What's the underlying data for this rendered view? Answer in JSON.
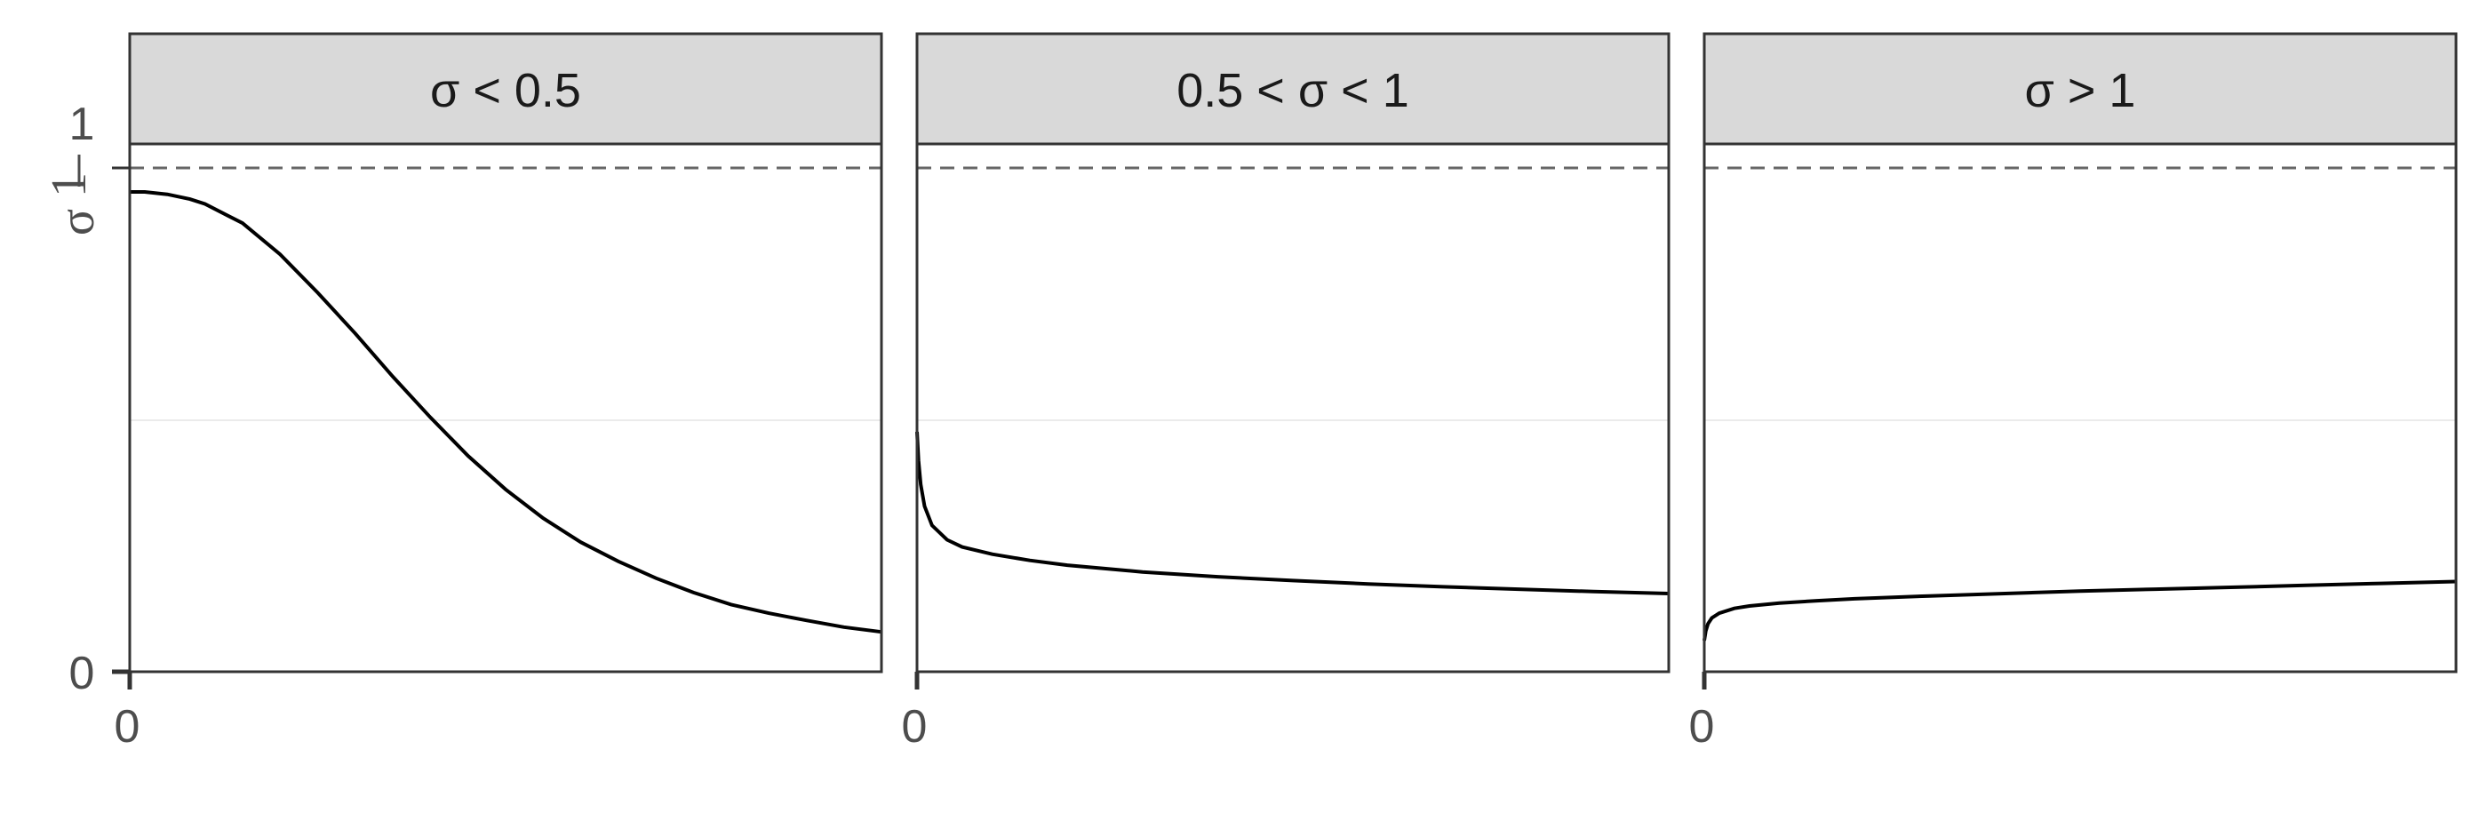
{
  "chart_data": {
    "type": "line",
    "facets": [
      {
        "strip_label": "σ < 0.5",
        "series": [
          {
            "x": [
              0,
              0.02,
              0.05,
              0.08,
              0.1,
              0.15,
              0.2,
              0.25,
              0.3,
              0.35,
              0.4,
              0.45,
              0.5,
              0.55,
              0.6,
              0.65,
              0.7,
              0.75,
              0.8,
              0.85,
              0.9,
              0.95,
              1
            ],
            "y": [
              1.0,
              1.0,
              0.995,
              0.985,
              0.975,
              0.935,
              0.87,
              0.79,
              0.705,
              0.615,
              0.53,
              0.45,
              0.38,
              0.32,
              0.27,
              0.23,
              0.195,
              0.165,
              0.14,
              0.122,
              0.107,
              0.093,
              0.083
            ]
          }
        ]
      },
      {
        "strip_label": "0.5 < σ < 1",
        "series": [
          {
            "x": [
              0,
              0.002,
              0.005,
              0.01,
              0.02,
              0.04,
              0.06,
              0.1,
              0.15,
              0.2,
              0.3,
              0.4,
              0.5,
              0.6,
              0.7,
              0.8,
              0.9,
              1
            ],
            "y": [
              0.5,
              0.44,
              0.39,
              0.345,
              0.305,
              0.275,
              0.26,
              0.245,
              0.232,
              0.222,
              0.208,
              0.198,
              0.19,
              0.183,
              0.177,
              0.172,
              0.167,
              0.163
            ]
          }
        ]
      },
      {
        "strip_label": "σ > 1",
        "series": [
          {
            "x": [
              0,
              0.002,
              0.005,
              0.01,
              0.02,
              0.04,
              0.06,
              0.1,
              0.15,
              0.2,
              0.3,
              0.4,
              0.5,
              0.6,
              0.7,
              0.8,
              0.9,
              1
            ],
            "y": [
              0.065,
              0.085,
              0.1,
              0.112,
              0.122,
              0.132,
              0.137,
              0.143,
              0.148,
              0.152,
              0.158,
              0.163,
              0.168,
              0.172,
              0.176,
              0.18,
              0.184,
              0.188
            ]
          }
        ]
      }
    ],
    "x_ticks": [
      "0"
    ],
    "y_ticks": [
      "0",
      "1"
    ],
    "y_frac_tick": {
      "numerator": "1",
      "denominator": "σ"
    },
    "reference_line": {
      "y": 1.0,
      "style": "dashed"
    },
    "xlim": [
      0,
      1
    ],
    "ylim": [
      0,
      1.1
    ],
    "grid": "horizontal minor at y=0.5",
    "legend": "none",
    "colors": {
      "line": "#000000",
      "strip_fill": "#d9d9d9",
      "border": "#333333",
      "reference": "#666666",
      "grid": "#ebebeb"
    }
  }
}
